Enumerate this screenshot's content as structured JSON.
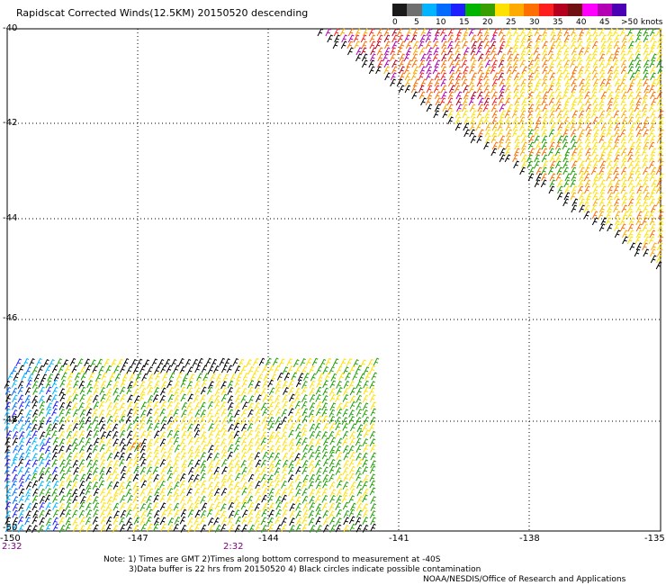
{
  "title": "Rapidscat Corrected Winds(12.5KM) 20150520 descending",
  "legend": {
    "colors": [
      "#1a1a1a",
      "#6f6f6f",
      "#00b4ff",
      "#006cff",
      "#1e1eff",
      "#00b400",
      "#37a000",
      "#ffe100",
      "#ffaa00",
      "#ff6e00",
      "#ff1e1e",
      "#b4001e",
      "#701010",
      "#ff00ff",
      "#b400b4",
      "#4b00b4"
    ],
    "labels": [
      "0",
      "5",
      "10",
      "15",
      "20",
      "25",
      "30",
      "35",
      "40",
      "45",
      ">50 knots"
    ]
  },
  "lat_labels": [
    "-40",
    "-42",
    "-44",
    "-46",
    "-48",
    "-50"
  ],
  "lon_labels": [
    "-150",
    "-147",
    "-144",
    "-141",
    "-138",
    "-135"
  ],
  "time_labels": [
    "2:32",
    "2:32"
  ],
  "notes": [
    "Note: 1) Times are GMT 2)Times along bottom correspond to measurement at -40S",
    "3)Data buffer is 22 hrs from 20150520 4) Black circles indicate possible contamination",
    "NOAA/NESDIS/Office of Research and Applications"
  ]
}
